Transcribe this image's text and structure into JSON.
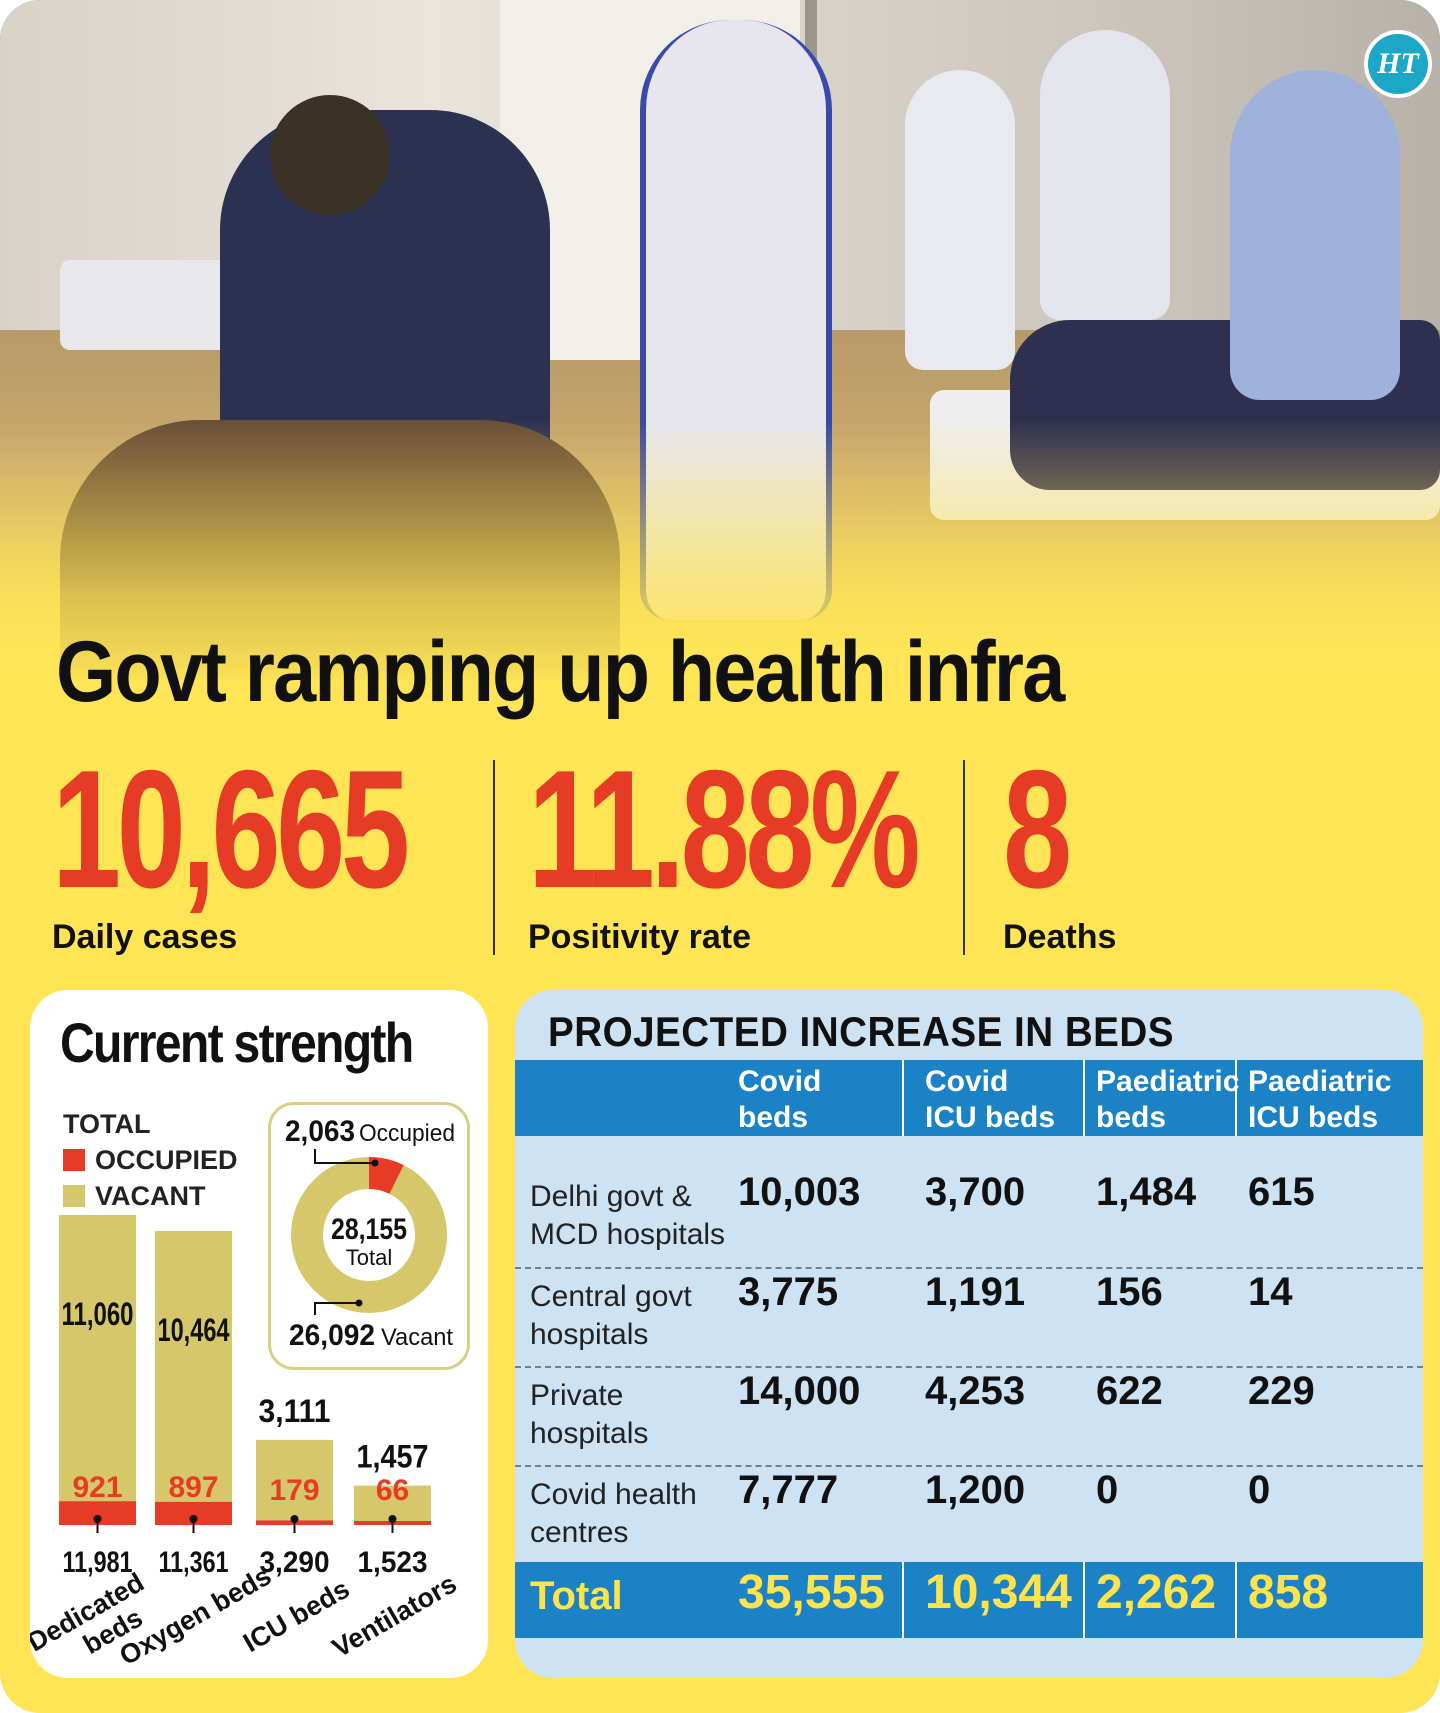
{
  "brand": {
    "logo_text": "HT"
  },
  "headline": "Govt ramping up health infra",
  "stats": [
    {
      "value": "10,665",
      "label": "Daily cases"
    },
    {
      "value": "11.88%",
      "label": "Positivity rate"
    },
    {
      "value": "8",
      "label": "Deaths"
    }
  ],
  "colors": {
    "occupied": "#e63b25",
    "vacant": "#d7c76b",
    "table_header": "#1c82c6",
    "total_text": "#ffe34d",
    "accent_red": "#e63b25"
  },
  "chart_data": [
    {
      "type": "bar",
      "title": "Current strength",
      "legend": [
        "TOTAL",
        "OCCUPIED",
        "VACANT"
      ],
      "categories": [
        "Dedicated beds",
        "Oxygen beds",
        "ICU beds",
        "Ventilators"
      ],
      "series": [
        {
          "name": "TOTAL",
          "values": [
            11981,
            11361,
            3290,
            1523
          ]
        },
        {
          "name": "OCCUPIED",
          "values": [
            921,
            897,
            179,
            66
          ]
        },
        {
          "name": "VACANT",
          "values": [
            11060,
            10464,
            3111,
            1457
          ]
        }
      ],
      "total_labels": [
        "11,981",
        "11,361",
        "3,290",
        "1,523"
      ],
      "occupied_labels": [
        "921",
        "897",
        "179",
        "66"
      ],
      "vacant_labels": [
        "11,060",
        "10,464",
        "3,111",
        "1,457"
      ]
    },
    {
      "type": "pie",
      "slices": [
        {
          "name": "Occupied",
          "value": 2063,
          "label": "2,063"
        },
        {
          "name": "Vacant",
          "value": 26092,
          "label": "26,092"
        }
      ],
      "center_value": "28,155",
      "center_label": "Total"
    },
    {
      "type": "table",
      "title": "PROJECTED INCREASE IN BEDS",
      "columns": [
        {
          "line1": "Covid",
          "line2": "beds"
        },
        {
          "line1": "Covid",
          "line2": "ICU beds"
        },
        {
          "line1": "Paediatric",
          "line2": "beds"
        },
        {
          "line1": "Paediatric",
          "line2": "ICU beds"
        }
      ],
      "rows": [
        {
          "line1": "Delhi govt &",
          "line2": "MCD hospitals",
          "values": [
            "10,003",
            "3,700",
            "1,484",
            "615"
          ]
        },
        {
          "line1": "Central govt",
          "line2": "hospitals",
          "values": [
            "3,775",
            "1,191",
            "156",
            "14"
          ]
        },
        {
          "line1": "Private",
          "line2": "hospitals",
          "values": [
            "14,000",
            "4,253",
            "622",
            "229"
          ]
        },
        {
          "line1": "Covid health",
          "line2": "centres",
          "values": [
            "7,777",
            "1,200",
            "0",
            "0"
          ]
        }
      ],
      "total": {
        "label": "Total",
        "values": [
          "35,555",
          "10,344",
          "2,262",
          "858"
        ]
      }
    }
  ]
}
